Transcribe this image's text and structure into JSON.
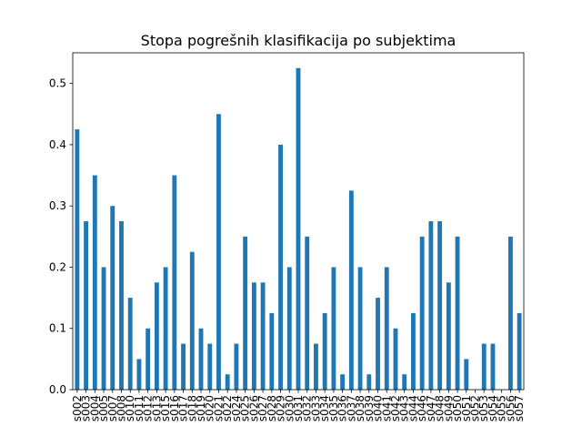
{
  "chart_data": {
    "type": "bar",
    "title": "Stopa pogrešnih klasifikacija po subjektima",
    "xlabel": "",
    "ylabel": "",
    "categories": [
      "s002",
      "s003",
      "s004",
      "s005",
      "s007",
      "s008",
      "s010",
      "s011",
      "s012",
      "s013",
      "s015",
      "s016",
      "s017",
      "s018",
      "s019",
      "s020",
      "s021",
      "s022",
      "s024",
      "s025",
      "s026",
      "s027",
      "s028",
      "s029",
      "s030",
      "s031",
      "s032",
      "s033",
      "s034",
      "s035",
      "s036",
      "s037",
      "s038",
      "s039",
      "s040",
      "s041",
      "s042",
      "s043",
      "s044",
      "s046",
      "s047",
      "s048",
      "s049",
      "s050",
      "s051",
      "s052",
      "s053",
      "s054",
      "s055",
      "s056",
      "s057"
    ],
    "values": [
      0.425,
      0.275,
      0.35,
      0.2,
      0.3,
      0.275,
      0.15,
      0.05,
      0.1,
      0.175,
      0.2,
      0.35,
      0.075,
      0.225,
      0.1,
      0.075,
      0.45,
      0.025,
      0.075,
      0.25,
      0.175,
      0.175,
      0.125,
      0.4,
      0.2,
      0.525,
      0.25,
      0.075,
      0.125,
      0.2,
      0.025,
      0.325,
      0.2,
      0.025,
      0.15,
      0.2,
      0.1,
      0.025,
      0.125,
      0.25,
      0.275,
      0.275,
      0.175,
      0.25,
      0.05,
      0.0,
      0.075,
      0.075,
      0.0,
      0.25,
      0.125
    ],
    "ylim": [
      0,
      0.55
    ],
    "yticks": [
      "0.0",
      "0.1",
      "0.2",
      "0.3",
      "0.4",
      "0.5"
    ],
    "bar_color": "#1f77b4",
    "grid": false,
    "legend": "none"
  }
}
